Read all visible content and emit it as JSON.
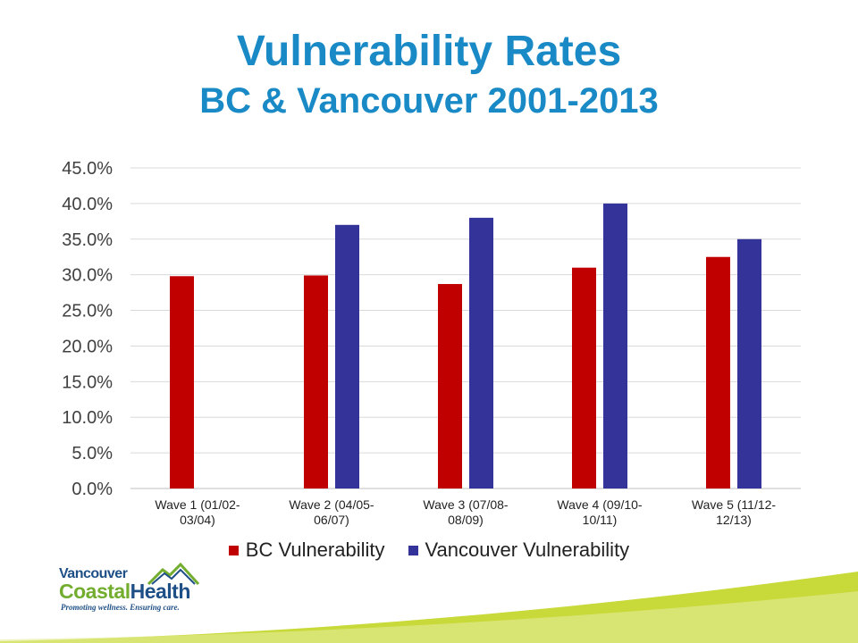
{
  "title": "Vulnerability Rates",
  "subtitle": "BC & Vancouver 2001-2013",
  "colors": {
    "title": "#1a8ac6",
    "bc": "#c00000",
    "vancouver": "#333399",
    "grid": "#d9d9d9",
    "swoosh": "#c8d93a"
  },
  "logo": {
    "line1": "Vancouver",
    "line2a": "Coastal",
    "line2b": "Health",
    "tagline": "Promoting wellness. Ensuring care."
  },
  "chart_data": {
    "type": "bar",
    "categories": [
      [
        "Wave 1 (01/02-",
        "03/04)"
      ],
      [
        "Wave 2 (04/05-",
        "06/07)"
      ],
      [
        "Wave 3 (07/08-",
        "08/09)"
      ],
      [
        "Wave 4 (09/10-",
        "10/11)"
      ],
      [
        "Wave 5 (11/12-",
        "12/13)"
      ]
    ],
    "series": [
      {
        "name": "BC Vulnerability",
        "color": "#c00000",
        "values": [
          29.8,
          29.9,
          28.7,
          31.0,
          32.5
        ]
      },
      {
        "name": "Vancouver Vulnerability",
        "color": "#333399",
        "values": [
          null,
          37.0,
          38.0,
          40.0,
          35.0
        ]
      }
    ],
    "ylim": [
      0,
      45
    ],
    "yticks": [
      "0.0%",
      "5.0%",
      "10.0%",
      "15.0%",
      "20.0%",
      "25.0%",
      "30.0%",
      "35.0%",
      "40.0%",
      "45.0%"
    ],
    "ytick_step": 5,
    "grid": true,
    "legend_position": "bottom"
  }
}
